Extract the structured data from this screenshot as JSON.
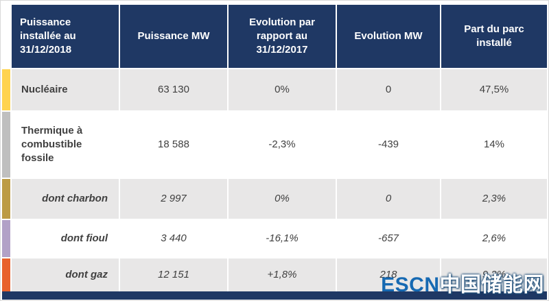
{
  "table": {
    "headers": [
      "Puissance installée au 31/12/2018",
      "Puissance MW",
      "Evolution par rapport au 31/12/2017",
      "Evolution MW",
      "Part du parc installé"
    ],
    "rows": [
      {
        "name": "Nucléaire",
        "puissance_mw": "63 130",
        "evolution_pct": "0%",
        "evolution_mw": "0",
        "part_parc": "47,5%",
        "stripe_color": "#ffd34f",
        "italic": false,
        "shaded": true
      },
      {
        "name": "Thermique à combustible fossile",
        "puissance_mw": "18 588",
        "evolution_pct": "-2,3%",
        "evolution_mw": "-439",
        "part_parc": "14%",
        "stripe_color": "#bfbfbf",
        "italic": false,
        "shaded": false
      },
      {
        "name": "dont charbon",
        "puissance_mw": "2 997",
        "evolution_pct": "0%",
        "evolution_mw": "0",
        "part_parc": "2,3%",
        "stripe_color": "#bc9b44",
        "italic": true,
        "shaded": true
      },
      {
        "name": "dont fioul",
        "puissance_mw": "3 440",
        "evolution_pct": "-16,1%",
        "evolution_mw": "-657",
        "part_parc": "2,6%",
        "stripe_color": "#b2a1c7",
        "italic": true,
        "shaded": false
      },
      {
        "name": "dont gaz",
        "puissance_mw": "12 151",
        "evolution_pct": "+1,8%",
        "evolution_mw": "218",
        "part_parc": "9,2%",
        "stripe_color": "#e8612c",
        "italic": true,
        "shaded": true
      }
    ]
  },
  "chart_data": {
    "type": "table",
    "title": "Puissance installée au 31/12/2018",
    "columns": [
      "Puissance installée au 31/12/2018",
      "Puissance MW",
      "Evolution par rapport au 31/12/2017",
      "Evolution MW",
      "Part du parc installé"
    ],
    "rows": [
      [
        "Nucléaire",
        "63 130",
        "0%",
        "0",
        "47,5%"
      ],
      [
        "Thermique à combustible fossile",
        "18 588",
        "-2,3%",
        "-439",
        "14%"
      ],
      [
        "dont charbon",
        "2 997",
        "0%",
        "0",
        "2,3%"
      ],
      [
        "dont fioul",
        "3 440",
        "-16,1%",
        "-657",
        "2,6%"
      ],
      [
        "dont gaz",
        "12 151",
        "+1,8%",
        "218",
        "9,2%"
      ]
    ]
  },
  "watermark": {
    "latin": "ESCN",
    "chinese": "中国储能网"
  },
  "colors": {
    "header_bg": "#1f3864",
    "shaded_row": "#e8e7e7",
    "body_text": "#404040",
    "stripe_nucleaire": "#ffd34f",
    "stripe_thermique": "#bfbfbf",
    "stripe_charbon": "#bc9b44",
    "stripe_fioul": "#b2a1c7",
    "stripe_gaz": "#e8612c",
    "watermark_blue": "#1669b2"
  }
}
